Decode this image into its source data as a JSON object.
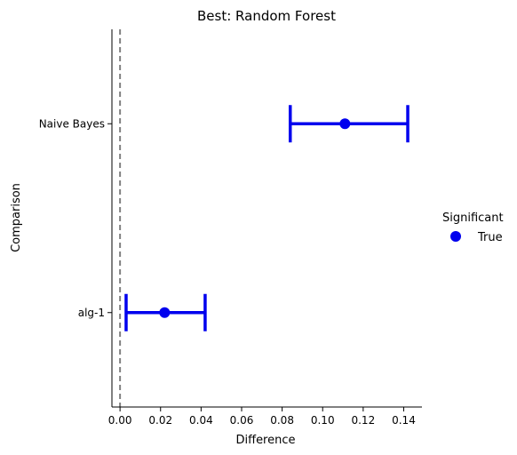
{
  "chart_data": {
    "type": "scatter",
    "title": "Best: Random Forest",
    "xlabel": "Difference",
    "ylabel": "Comparison",
    "xlim": [
      -0.004,
      0.149
    ],
    "x_ticks": [
      0.0,
      0.02,
      0.04,
      0.06,
      0.08,
      0.1,
      0.12,
      0.14
    ],
    "x_tick_labels": [
      "0.00",
      "0.02",
      "0.04",
      "0.06",
      "0.08",
      "0.10",
      "0.12",
      "0.14"
    ],
    "categories": [
      "Naive Bayes",
      "alg-1"
    ],
    "points": [
      {
        "category": "Naive Bayes",
        "value": 0.111,
        "ci_low": 0.084,
        "ci_high": 0.142,
        "significant": "True"
      },
      {
        "category": "alg-1",
        "value": 0.022,
        "ci_low": 0.003,
        "ci_high": 0.042,
        "significant": "True"
      }
    ],
    "reference_line": {
      "x": 0.0,
      "style": "dashed",
      "color": "#808080"
    },
    "legend": {
      "title": "Significant",
      "entries": [
        "True"
      ],
      "placement": "right"
    },
    "colors": {
      "series": "#0000ee"
    },
    "grid": false
  }
}
